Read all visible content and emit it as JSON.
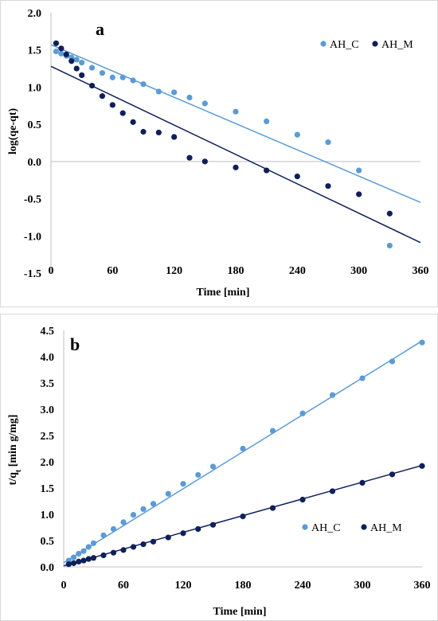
{
  "chart_data": [
    {
      "type": "scatter",
      "panel_label": "a",
      "xlabel": "Time [min]",
      "ylabel": "log(qe-qt)",
      "xlim": [
        0,
        360
      ],
      "ylim": [
        -1.5,
        2.0
      ],
      "xticks": [
        0,
        60,
        120,
        180,
        240,
        300,
        360
      ],
      "yticks": [
        -1.5,
        -1.0,
        -0.5,
        0.0,
        0.5,
        1.0,
        1.5,
        2.0
      ],
      "ytick_labels": [
        "-1.5",
        "-1.0",
        "-0.5",
        "0.0",
        "0.5",
        "1.0",
        "1.5",
        "2.0"
      ],
      "grid": false,
      "legend": "top-right",
      "series": [
        {
          "name": "AH_C",
          "color": "#5b9bd5",
          "x": [
            5,
            10,
            15,
            20,
            25,
            30,
            40,
            50,
            60,
            70,
            80,
            90,
            105,
            120,
            135,
            150,
            180,
            210,
            240,
            270,
            300,
            330
          ],
          "y": [
            1.48,
            1.45,
            1.42,
            1.4,
            1.37,
            1.33,
            1.26,
            1.19,
            1.13,
            1.13,
            1.09,
            1.04,
            0.94,
            0.93,
            0.86,
            0.78,
            0.67,
            0.54,
            0.36,
            0.26,
            -0.12,
            -1.13
          ],
          "trendline": {
            "x": [
              0,
              360
            ],
            "y": [
              1.57,
              -0.55
            ]
          }
        },
        {
          "name": "AH_M",
          "color": "#0e1f5b",
          "x": [
            5,
            10,
            15,
            20,
            25,
            30,
            40,
            50,
            60,
            70,
            80,
            90,
            105,
            120,
            135,
            150,
            180,
            210,
            240,
            270,
            300,
            330
          ],
          "y": [
            1.59,
            1.52,
            1.44,
            1.35,
            1.25,
            1.16,
            1.02,
            0.88,
            0.76,
            0.65,
            0.53,
            0.4,
            0.39,
            0.33,
            0.05,
            0.0,
            -0.08,
            -0.12,
            -0.2,
            -0.33,
            -0.44,
            -0.7
          ],
          "trendline": {
            "x": [
              0,
              360
            ],
            "y": [
              1.28,
              -1.09
            ]
          }
        }
      ]
    },
    {
      "type": "scatter",
      "panel_label": "b",
      "xlabel": "Time [min]",
      "ylabel_main": "t/q",
      "ylabel_sub": "t",
      "ylabel_unit": " [min g/mg]",
      "xlim": [
        0,
        360
      ],
      "ylim": [
        0,
        4.5
      ],
      "xticks": [
        0,
        60,
        120,
        180,
        240,
        300,
        360
      ],
      "yticks": [
        0,
        0.5,
        1.0,
        1.5,
        2.0,
        2.5,
        3.0,
        3.5,
        4.0,
        4.5
      ],
      "ytick_labels": [
        "0.0",
        "0.5",
        "1.0",
        "1.5",
        "2.0",
        "2.5",
        "3.0",
        "3.5",
        "4.0",
        "4.5"
      ],
      "grid": false,
      "legend": "bottom-right",
      "series": [
        {
          "name": "AH_C",
          "color": "#5b9bd5",
          "x": [
            5,
            10,
            15,
            20,
            25,
            30,
            40,
            50,
            60,
            70,
            80,
            90,
            105,
            120,
            135,
            150,
            180,
            210,
            240,
            270,
            300,
            330,
            360
          ],
          "y": [
            0.12,
            0.18,
            0.25,
            0.3,
            0.38,
            0.45,
            0.6,
            0.72,
            0.85,
            0.99,
            1.1,
            1.2,
            1.39,
            1.58,
            1.75,
            1.91,
            2.25,
            2.59,
            2.92,
            3.27,
            3.59,
            3.91,
            4.27
          ],
          "trendline": {
            "x": [
              0,
              360
            ],
            "y": [
              0.08,
              4.3
            ]
          }
        },
        {
          "name": "AH_M",
          "color": "#0e1f5b",
          "x": [
            5,
            10,
            15,
            20,
            25,
            30,
            40,
            50,
            60,
            70,
            80,
            90,
            105,
            120,
            135,
            150,
            180,
            210,
            240,
            270,
            300,
            330,
            360
          ],
          "y": [
            0.05,
            0.07,
            0.1,
            0.12,
            0.15,
            0.17,
            0.22,
            0.27,
            0.32,
            0.38,
            0.43,
            0.48,
            0.56,
            0.64,
            0.72,
            0.8,
            0.96,
            1.12,
            1.28,
            1.44,
            1.6,
            1.76,
            1.92
          ],
          "trendline": {
            "x": [
              0,
              360
            ],
            "y": [
              0.02,
              1.93
            ]
          }
        }
      ]
    }
  ]
}
